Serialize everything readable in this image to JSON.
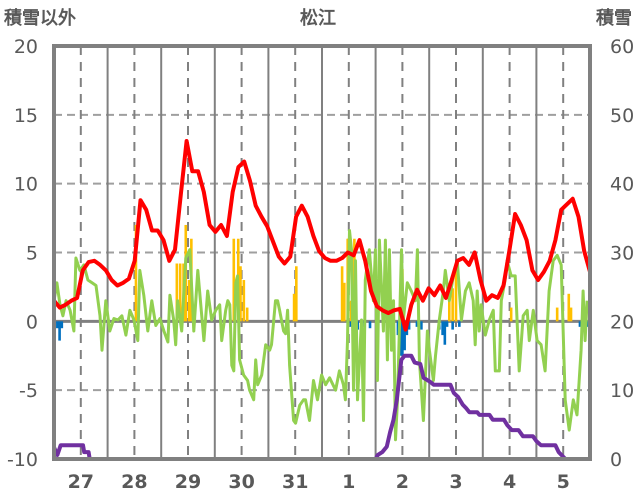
{
  "chart_data": {
    "type": "line",
    "title": "松江",
    "ylabel_left": "積雪以外",
    "ylabel_right": "積雪",
    "x_range_hours": [
      0,
      240
    ],
    "ylim_left": [
      -10,
      20
    ],
    "ylim_right": [
      0,
      60
    ],
    "yticks_left": [
      "20",
      "15",
      "10",
      "5",
      "0",
      "-5",
      "-10"
    ],
    "yticks_left_values": [
      20,
      15,
      10,
      5,
      0,
      -5,
      -10
    ],
    "yticks_right": [
      "60",
      "50",
      "40",
      "30",
      "20",
      "10",
      "0"
    ],
    "yticks_right_values": [
      60,
      50,
      40,
      30,
      20,
      10,
      0
    ],
    "xtick_labels": [
      "27",
      "28",
      "29",
      "30",
      "31",
      "1",
      "2",
      "3",
      "4",
      "5"
    ],
    "xtick_hours": [
      12,
      36,
      60,
      84,
      108,
      132,
      156,
      180,
      204,
      228
    ],
    "grid": true,
    "colors": {
      "red": "#ff0000",
      "green": "#92d050",
      "orange": "#ffc000",
      "blue": "#0070c0",
      "purple": "#7030a0",
      "grid": "#808080",
      "axis_text": "#595959"
    },
    "series": [
      {
        "name": "red-line",
        "axis": "left",
        "color": "#ff0000",
        "evenly_spaced": true,
        "values": [
          1.5,
          1.0,
          1.2,
          1.5,
          1.7,
          3.7,
          4.3,
          4.4,
          4.1,
          3.7,
          3.0,
          2.6,
          2.8,
          3.1,
          4.4,
          8.8,
          8.1,
          6.6,
          6.6,
          5.9,
          4.4,
          5.2,
          9.2,
          13.1,
          10.9,
          10.9,
          9.4,
          7.0,
          6.5,
          7.0,
          6.2,
          9.4,
          11.2,
          11.6,
          10.2,
          8.4,
          7.6,
          6.9,
          5.8,
          4.7,
          4.2,
          4.7,
          7.6,
          8.4,
          7.6,
          6.2,
          5.1,
          4.6,
          4.4,
          4.4,
          4.6,
          5.0,
          4.8,
          5.9,
          4.4,
          2.2,
          1.1,
          0.8,
          0.6,
          0.8,
          0.9,
          -0.6,
          1.2,
          2.3,
          1.5,
          2.4,
          1.9,
          2.6,
          1.7,
          3.0,
          4.4,
          4.6,
          4.1,
          5.0,
          3.0,
          1.5,
          1.9,
          1.7,
          2.6,
          5.1,
          7.8,
          7.0,
          5.9,
          3.7,
          3.0,
          3.6,
          4.4,
          5.9,
          8.1,
          8.5,
          8.9,
          7.6,
          5.1,
          3.6
        ]
      },
      {
        "name": "green-line",
        "axis": "left",
        "color": "#92d050",
        "x": [
          0,
          1.3,
          2.7,
          4.0,
          5.4,
          7.2,
          8.9,
          9.8,
          11.6,
          13.4,
          15.2,
          17.0,
          18.8,
          20.6,
          21.5,
          23.2,
          25.0,
          26.8,
          28.6,
          30.4,
          32.2,
          34.0,
          35.8,
          37.5,
          38.4,
          40.2,
          42.0,
          43.8,
          45.6,
          47.4,
          49.2,
          51.0,
          51.9,
          53.6,
          54.5,
          55.4,
          57.2,
          59.0,
          60.8,
          62.6,
          64.4,
          67.1,
          68.8,
          70.6,
          72.4,
          74.2,
          75.1,
          76.9,
          77.8,
          78.7,
          79.6,
          80.5,
          81.4,
          82.2,
          83.1,
          84.9,
          86.7,
          87.6,
          89.4,
          90.3,
          91.2,
          93.0,
          94.8,
          96.6,
          97.4,
          99.2,
          100.1,
          101.0,
          102.8,
          103.7,
          104.6,
          105.5,
          107.3,
          108.2,
          110.0,
          111.7,
          112.6,
          114.4,
          116.2,
          118.0,
          119.8,
          121.6,
          123.4,
          126.1,
          127.8,
          129.6,
          130.5,
          131.4,
          132.3,
          133.2,
          134.1,
          135.0,
          135.9,
          137.7,
          138.6,
          139.4,
          141.2,
          143.0,
          143.9,
          144.8,
          145.7,
          147.5,
          148.4,
          149.3,
          150.2,
          151.1,
          152.0,
          152.9,
          153.8,
          155.6,
          156.4,
          158.2,
          160.0,
          161.8,
          162.7,
          163.6,
          165.4,
          167.2,
          168.1,
          169.9,
          170.8,
          172.5,
          174.3,
          175.2,
          177.0,
          178.8,
          180.6,
          182.4,
          184.2,
          185.9,
          187.7,
          188.6,
          189.5,
          190.4,
          191.3,
          192.2,
          193.1,
          194.9,
          196.7,
          197.6,
          199.4,
          200.3,
          202.0,
          202.9,
          204.7,
          206.5,
          208.3,
          210.1,
          211.9,
          212.8,
          214.6,
          216.3,
          218.1,
          219.9,
          221.7,
          223.5,
          225.3,
          227.1,
          228.9,
          230.7,
          232.5,
          234.2,
          236.0,
          236.9,
          237.8,
          238.7
        ],
        "values": [
          1.5,
          2.8,
          1.2,
          0.4,
          1.5,
          0.8,
          -0.7,
          4.6,
          3.7,
          4.1,
          3.0,
          2.8,
          2.6,
          0.4,
          -2.1,
          1.5,
          -0.7,
          0.2,
          0.1,
          0.4,
          -1.0,
          0.8,
          0.1,
          -1.4,
          3.7,
          1.9,
          -0.7,
          1.5,
          -0.3,
          0.2,
          -0.7,
          -1.5,
          1.9,
          0.1,
          -1.7,
          1.5,
          -0.7,
          4.6,
          5.2,
          -0.7,
          3.7,
          -1.4,
          2.2,
          0.1,
          0.8,
          1.2,
          -1.4,
          0.8,
          1.5,
          1.2,
          -3.2,
          -3.6,
          2.8,
          3.3,
          -2.8,
          -3.9,
          -4.3,
          -5.0,
          -5.7,
          -2.8,
          -4.6,
          -3.9,
          -1.7,
          -2.1,
          -1.7,
          1.5,
          1.5,
          0.8,
          -0.7,
          -0.9,
          0.8,
          -3.2,
          -7.2,
          -7.4,
          -6.1,
          -5.7,
          -5.7,
          -7.2,
          -4.3,
          -5.7,
          -3.9,
          -4.6,
          -4.1,
          -5.0,
          -3.6,
          -4.6,
          -5.7,
          -1.4,
          6.6,
          5.2,
          -5.0,
          4.4,
          -5.7,
          0.1,
          -7.2,
          3.0,
          5.2,
          1.5,
          5.2,
          -4.3,
          5.9,
          -0.7,
          5.9,
          -2.8,
          5.2,
          -2.1,
          1.5,
          -8.6,
          -5.7,
          5.2,
          0.1,
          2.8,
          2.2,
          1.5,
          5.2,
          -2.8,
          -7.2,
          -0.7,
          -2.1,
          -4.3,
          -2.5,
          0.1,
          2.2,
          3.7,
          1.5,
          3.3,
          4.4,
          0.1,
          2.2,
          2.8,
          1.5,
          -1.7,
          2.2,
          -0.7,
          1.2,
          0.1,
          -1.0,
          0.1,
          0.8,
          -3.6,
          -3.6,
          1.5,
          3.0,
          4.4,
          3.3,
          3.3,
          -3.6,
          0.4,
          0.8,
          -1.4,
          0.8,
          -1.4,
          -1.7,
          -3.6,
          2.2,
          4.4,
          4.8,
          4.1,
          -5.7,
          -7.9,
          -5.7,
          -6.8,
          -2.1,
          2.2,
          -1.4,
          1.5
        ]
      },
      {
        "name": "purple-snow-depth",
        "axis": "right",
        "color": "#7030a0",
        "points": [
          [
            0,
            1.7
          ],
          [
            1.5,
            0.6
          ],
          [
            3,
            2
          ],
          [
            13,
            2
          ],
          [
            13.5,
            1
          ],
          [
            15.5,
            1
          ],
          [
            16,
            0
          ],
          [
            144,
            0
          ],
          [
            145,
            0.6
          ],
          [
            147,
            1
          ],
          [
            149,
            1.8
          ],
          [
            150.5,
            3.9
          ],
          [
            152,
            5.7
          ],
          [
            153.5,
            8.6
          ],
          [
            155.5,
            14.4
          ],
          [
            157,
            15
          ],
          [
            160,
            15
          ],
          [
            161.5,
            14
          ],
          [
            164,
            13.8
          ],
          [
            165.5,
            11.8
          ],
          [
            168.5,
            11.2
          ],
          [
            170,
            10.8
          ],
          [
            177.5,
            10.8
          ],
          [
            179,
            9.6
          ],
          [
            181,
            9
          ],
          [
            183,
            7.9
          ],
          [
            184.5,
            7.4
          ],
          [
            186,
            6.8
          ],
          [
            189.5,
            6.8
          ],
          [
            190.5,
            6.4
          ],
          [
            195,
            6.4
          ],
          [
            196.5,
            5.7
          ],
          [
            201.5,
            5.7
          ],
          [
            203,
            4.9
          ],
          [
            205,
            4.2
          ],
          [
            208,
            4.2
          ],
          [
            210,
            3.3
          ],
          [
            214.5,
            3.3
          ],
          [
            216,
            2.6
          ],
          [
            218,
            2
          ],
          [
            224.5,
            2
          ],
          [
            226,
            1
          ],
          [
            229,
            0
          ],
          [
            240,
            0
          ]
        ]
      }
    ],
    "bars": [
      {
        "name": "orange-bars",
        "axis": "left",
        "color": "#ffc000",
        "points": [
          [
            36.7,
            7.0
          ],
          [
            55.0,
            4.2
          ],
          [
            56.5,
            4.2
          ],
          [
            58.0,
            4.2
          ],
          [
            59.0,
            7.0
          ],
          [
            60.5,
            3.0
          ],
          [
            61.5,
            6.0
          ],
          [
            80.5,
            6.0
          ],
          [
            82.5,
            6.0
          ],
          [
            83.5,
            4.0
          ],
          [
            85,
            3.0
          ],
          [
            86.5,
            1.0
          ],
          [
            107.5,
            2.0
          ],
          [
            108.5,
            4.0
          ],
          [
            129,
            4.0
          ],
          [
            130,
            2.8
          ],
          [
            131.5,
            6.0
          ],
          [
            133,
            1.5
          ],
          [
            134.5,
            6.0
          ],
          [
            156,
            3.8
          ],
          [
            177,
            2.4
          ],
          [
            178.5,
            2.4
          ],
          [
            180,
            3.7
          ],
          [
            204.7,
            1.0
          ],
          [
            225.3,
            1.0
          ],
          [
            230.5,
            2.0
          ],
          [
            231.5,
            1.0
          ]
        ]
      },
      {
        "name": "blue-bars",
        "axis": "left",
        "color": "#0070c0",
        "points": [
          [
            1.5,
            -0.5
          ],
          [
            2.5,
            -1.4
          ],
          [
            3.5,
            -0.5
          ],
          [
            62.5,
            -0.3
          ],
          [
            133,
            -0.4
          ],
          [
            136,
            -0.6
          ],
          [
            139,
            -0.4
          ],
          [
            141.5,
            -0.5
          ],
          [
            145,
            -0.6
          ],
          [
            147.5,
            -0.4
          ],
          [
            154,
            -1.0
          ],
          [
            155,
            -2.5
          ],
          [
            156,
            -2.5
          ],
          [
            157,
            -2.1
          ],
          [
            158,
            -1.0
          ],
          [
            159,
            -0.6
          ],
          [
            162.5,
            -0.4
          ],
          [
            164.5,
            -0.6
          ],
          [
            172.5,
            -0.6
          ],
          [
            174,
            -1.0
          ],
          [
            175,
            -1.7
          ],
          [
            176,
            -0.4
          ],
          [
            178.5,
            -0.6
          ],
          [
            181.5,
            -0.4
          ],
          [
            235.5,
            -0.4
          ],
          [
            237.5,
            -0.4
          ],
          [
            239,
            -0.4
          ]
        ]
      }
    ]
  }
}
